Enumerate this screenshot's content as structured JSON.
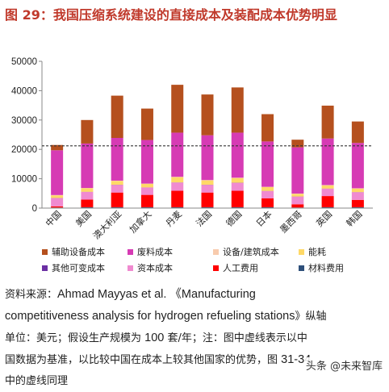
{
  "figure": {
    "title": "图 29：我国压缩系统建设的直接成本及装配成本优势明显",
    "source_lines": [
      [
        {
          "t": "资料来源：",
          "en": false
        },
        {
          "t": "Ahmad Mayyas et al. 《Manufacturing",
          "en": true
        }
      ],
      [
        {
          "t": "competitiveness analysis for hydrogen refueling stations",
          "en": true
        },
        {
          "t": "》纵轴",
          "en": false
        }
      ],
      [
        {
          "t": "单位：美元；假设生产规模为 ",
          "en": false
        },
        {
          "t": "100",
          "en": true
        },
        {
          "t": " 套/年；注：图中虚线表示以中",
          "en": false
        }
      ],
      [
        {
          "t": "国数据为基准，以比较中国在成本上较其他国家的优势，图 ",
          "en": false
        },
        {
          "t": "31-34",
          "en": true
        }
      ],
      [
        {
          "t": "中的虚线同理",
          "en": false
        }
      ]
    ],
    "watermark": "头条 @未来智库"
  },
  "chart_data": {
    "type": "bar",
    "stacked": true,
    "ylim": [
      0,
      50000
    ],
    "yticks": [
      0,
      10000,
      20000,
      30000,
      40000,
      50000
    ],
    "ytick_labels": [
      "0",
      "10000",
      "20000",
      "30000",
      "40000",
      "50000"
    ],
    "reference_line": 21200,
    "categories": [
      "中国",
      "美国",
      "澳大利亚",
      "加拿大",
      "丹麦",
      "法国",
      "德国",
      "日本",
      "墨西哥",
      "英国",
      "韩国"
    ],
    "series": [
      {
        "name": "材料费用",
        "color": "#2e4f7a",
        "values": [
          200,
          300,
          300,
          300,
          300,
          300,
          300,
          300,
          200,
          300,
          300
        ]
      },
      {
        "name": "人工费用",
        "color": "#ff0000",
        "values": [
          400,
          2600,
          5000,
          4200,
          5600,
          5000,
          5600,
          3000,
          1100,
          3800,
          2500
        ]
      },
      {
        "name": "资本成本",
        "color": "#f08ad0",
        "values": [
          2800,
          2600,
          2600,
          2500,
          2800,
          2600,
          2700,
          2500,
          2600,
          2500,
          2600
        ]
      },
      {
        "name": "其他可变成本",
        "color": "#6b2fa3",
        "values": [
          50,
          50,
          50,
          50,
          50,
          50,
          50,
          50,
          50,
          50,
          50
        ]
      },
      {
        "name": "能耗",
        "color": "#ffd966",
        "values": [
          900,
          1200,
          1300,
          1200,
          1800,
          1500,
          1600,
          1300,
          900,
          1100,
          1200
        ]
      },
      {
        "name": "设备/建筑成本",
        "color": "#f8cbad",
        "values": [
          100,
          100,
          100,
          100,
          100,
          100,
          100,
          100,
          100,
          100,
          100
        ]
      },
      {
        "name": "废料成本",
        "color": "#d63bb4",
        "values": [
          15250,
          15150,
          14550,
          14850,
          15050,
          15250,
          15350,
          15450,
          15750,
          15850,
          15450
        ]
      },
      {
        "name": "辅助设备成本",
        "color": "#b5501e",
        "values": [
          1800,
          8000,
          14400,
          10700,
          16300,
          13900,
          15400,
          9300,
          2600,
          11200,
          7300
        ]
      }
    ],
    "legend": {
      "placement": "bottom",
      "order": [
        "辅助设备成本",
        "废料成本",
        "设备/建筑成本",
        "能耗",
        "其他可变成本",
        "资本成本",
        "人工费用",
        "材料费用"
      ]
    }
  }
}
